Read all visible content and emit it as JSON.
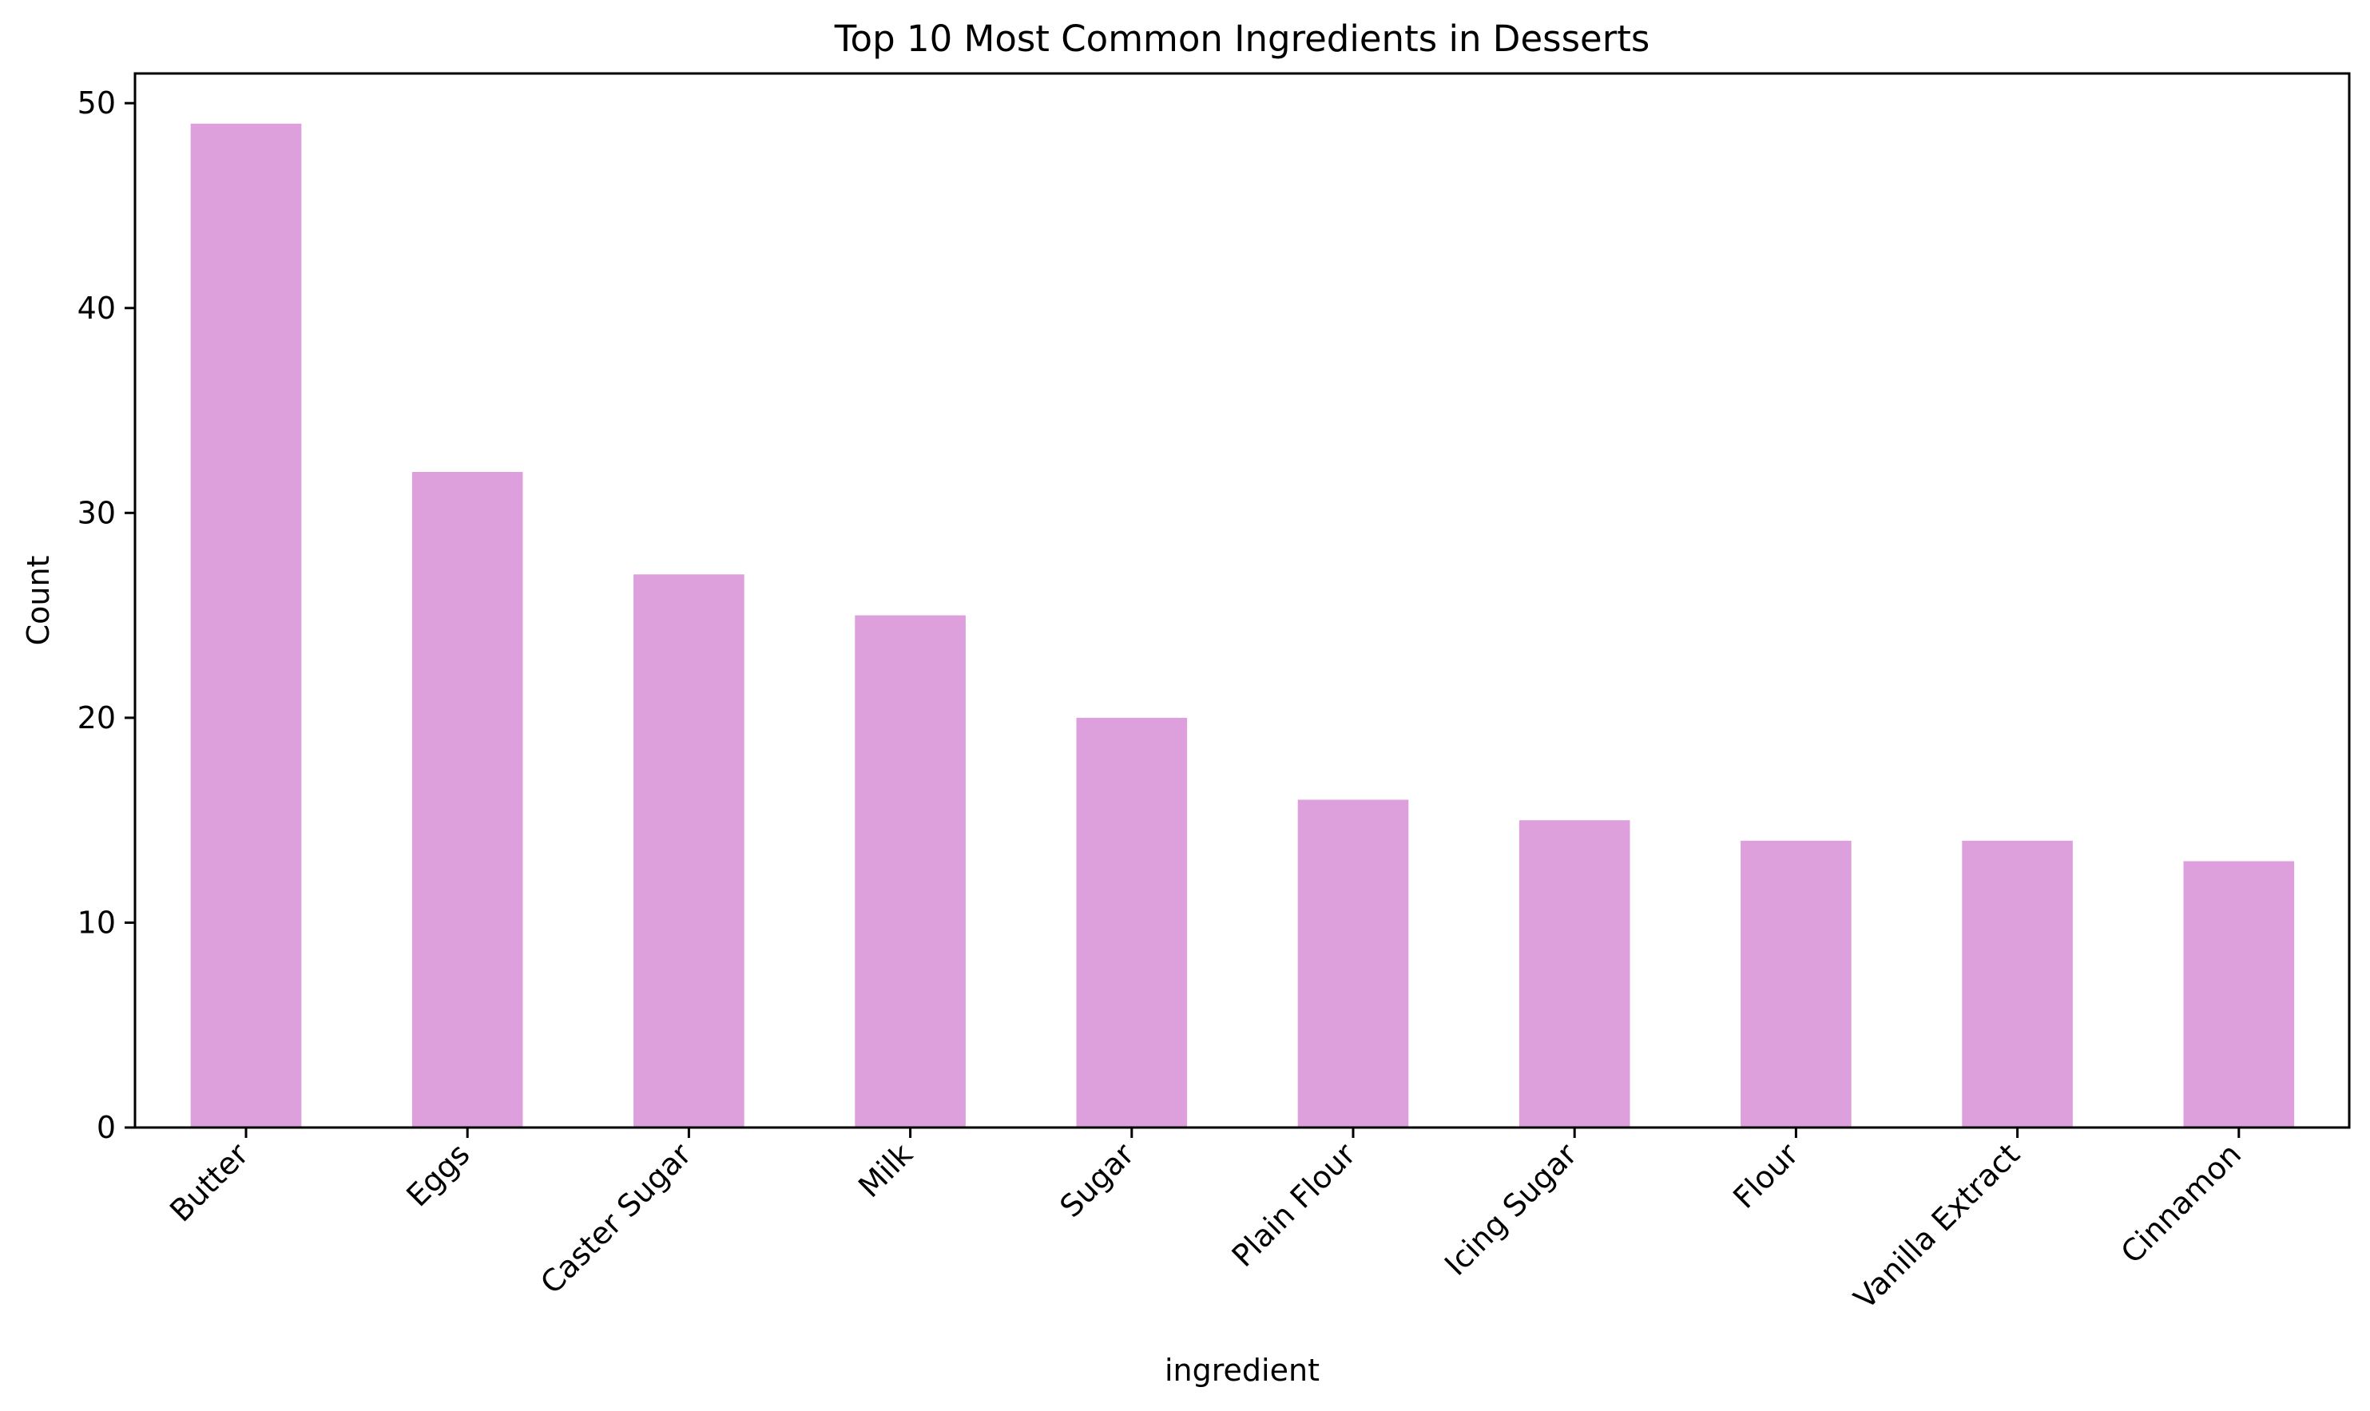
{
  "chart_data": {
    "type": "bar",
    "title": "Top 10 Most Common Ingredients in Desserts",
    "xlabel": "ingredient",
    "ylabel": "Count",
    "categories": [
      "Butter",
      "Eggs",
      "Caster Sugar",
      "Milk",
      "Sugar",
      "Plain Flour",
      "Icing Sugar",
      "Flour",
      "Vanilla Extract",
      "Cinnamon"
    ],
    "values": [
      49,
      32,
      27,
      25,
      20,
      16,
      15,
      14,
      14,
      13
    ],
    "ylim": [
      0,
      51.45
    ],
    "yticks": [
      0,
      10,
      20,
      30,
      40,
      50
    ],
    "grid": false,
    "legend": "none",
    "bar_color": "#dda0dd"
  }
}
